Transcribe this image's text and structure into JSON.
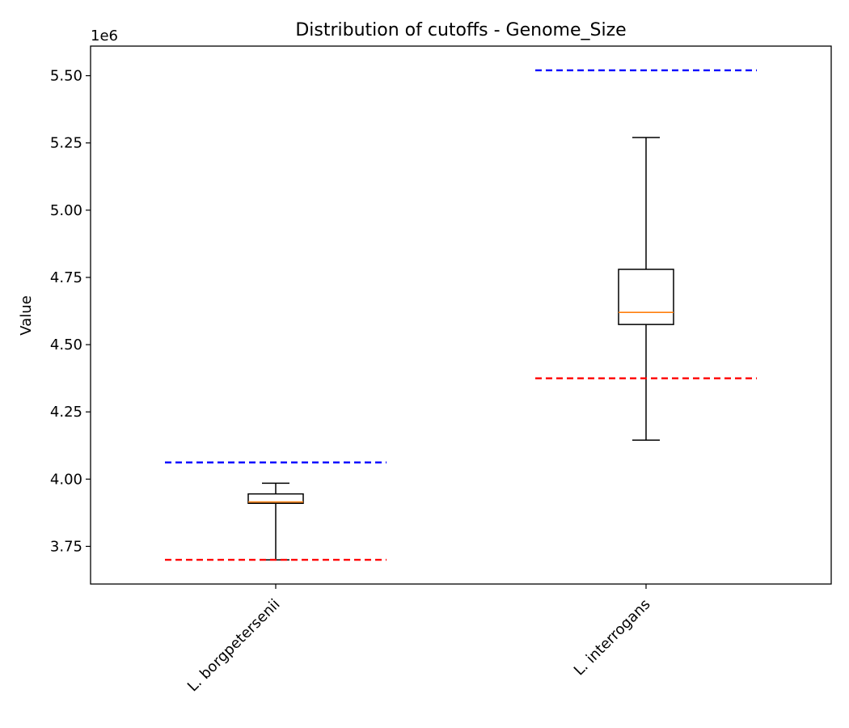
{
  "chart_data": {
    "type": "box",
    "title": "Distribution of cutoffs - Genome_Size",
    "xlabel": "",
    "ylabel": "Value",
    "offset_label": "1e6",
    "ylim": [
      3610000,
      5610000
    ],
    "yticks": [
      {
        "value": 3750000,
        "label": "3.75"
      },
      {
        "value": 4000000,
        "label": "4.00"
      },
      {
        "value": 4250000,
        "label": "4.25"
      },
      {
        "value": 4500000,
        "label": "4.50"
      },
      {
        "value": 4750000,
        "label": "4.75"
      },
      {
        "value": 5000000,
        "label": "5.00"
      },
      {
        "value": 5250000,
        "label": "5.25"
      },
      {
        "value": 5500000,
        "label": "5.50"
      }
    ],
    "categories": [
      "L. borgpetersenii",
      "L. interrogans"
    ],
    "boxes": [
      {
        "category": "L. borgpetersenii",
        "whisker_low": 3700000,
        "q1": 3910000,
        "median": 3915000,
        "q3": 3945000,
        "whisker_high": 3985000
      },
      {
        "category": "L. interrogans",
        "whisker_low": 4145000,
        "q1": 4575000,
        "median": 4620000,
        "q3": 4780000,
        "whisker_high": 5270000
      }
    ],
    "cutoff_lines": [
      {
        "category": "L. borgpetersenii",
        "upper": 4062000,
        "lower": 3700000
      },
      {
        "category": "L. interrogans",
        "upper": 5520000,
        "lower": 4375000
      }
    ],
    "colors": {
      "box": "#000000",
      "median": "#ff7f0e",
      "upper_cutoff": "#0000ff",
      "lower_cutoff": "#ff0000"
    },
    "grid": false,
    "legend": "none"
  }
}
